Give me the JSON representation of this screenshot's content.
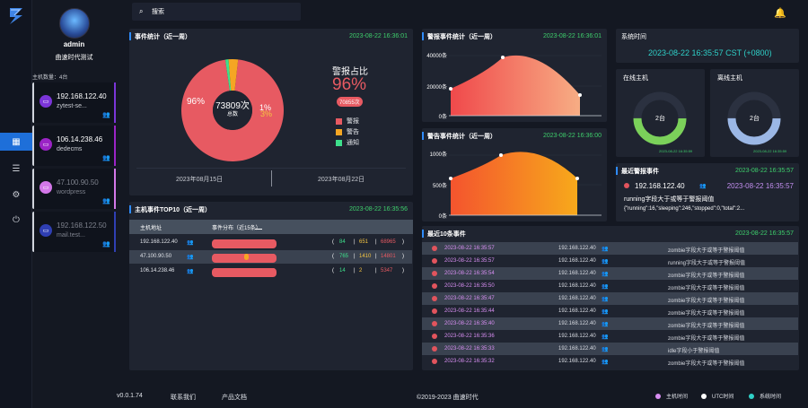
{
  "user": {
    "name": "admin",
    "org": "曲速时代测试"
  },
  "sidebar": {
    "host_count": "主机数量：4台",
    "hosts": [
      {
        "ip": "192.168.122.40",
        "name": "zytest-se...",
        "color": "#7b35d8"
      },
      {
        "ip": "106.14.238.46",
        "name": "dedecms",
        "color": "#9b24c6"
      },
      {
        "ip": "47.100.90.50",
        "name": "wordpress",
        "color": "#d478e9"
      },
      {
        "ip": "192.168.122.50",
        "name": "mail.test...",
        "color": "#2f3fb3"
      }
    ]
  },
  "search": {
    "placeholder": "搜索"
  },
  "event_stats": {
    "title": "事件统计（近一周）",
    "time": "2023-08-22 16:36:01",
    "center_value": "73809次",
    "center_label": "总数",
    "pct_alarm": "96%",
    "pct_other": "1%",
    "pct_notice": "3%",
    "alarm_ratio_label": "警报占比",
    "alarm_ratio": "96%",
    "alarm_count": "70855次",
    "legend": [
      "警报",
      "警告",
      "通知"
    ],
    "date_start": "2023年08月15日",
    "date_end": "2023年08月22日"
  },
  "alarm_stats": {
    "title": "警报事件统计（近一周）",
    "time": "2023-08-22 16:36:01",
    "yticks": [
      "40000条",
      "20000条",
      "0条"
    ]
  },
  "warn_stats": {
    "title": "警告事件统计（近一周）",
    "time": "2023-08-22 16:36:00",
    "yticks": [
      "1000条",
      "500条",
      "0条"
    ]
  },
  "sys_time": {
    "title": "系统时间",
    "value": "2023-08-22 16:35:57  CST (+0800)"
  },
  "online": {
    "title": "在线主机",
    "value": "2台",
    "time": "2023-08-22 16:35:59"
  },
  "offline": {
    "title": "离线主机",
    "value": "2台",
    "time": "2023-08-22 16:35:59"
  },
  "recent_alarm": {
    "title": "最近警报事件",
    "time": "2023-08-22 16:35:57",
    "ip": "192.168.122.40",
    "ts": "2023-08-22 16:35:57",
    "msg": "running字段大于或等于警报阈值",
    "detail": "{\"running\":16,\"sleeping\":246,\"stopped\":0,\"total\":2..."
  },
  "top10": {
    "title": "主机事件TOP10（近一周）",
    "time": "2023-08-22 16:35:56",
    "col1": "主机地址",
    "col2": "事件分布（近15条）",
    "rows": [
      {
        "ip": "192.168.122.40",
        "a": "84",
        "b": "651",
        "c": "68965"
      },
      {
        "ip": "47.100.90.50",
        "a": "765",
        "b": "1410",
        "c": "14801"
      },
      {
        "ip": "106.14.238.46",
        "a": "14",
        "b": "2",
        "c": "5347"
      }
    ]
  },
  "recent10": {
    "title": "最近10条事件",
    "time": "2023-08-22 16:35:57",
    "rows": [
      {
        "ts": "2023-08-22 16:35:57",
        "ip": "192.168.122.40",
        "msg": "zombie字段大于或等于警报阈值"
      },
      {
        "ts": "2023-08-22 16:35:57",
        "ip": "192.168.122.40",
        "msg": "running字段大于或等于警报阈值"
      },
      {
        "ts": "2023-08-22 16:35:54",
        "ip": "192.168.122.40",
        "msg": "zombie字段大于或等于警报阈值"
      },
      {
        "ts": "2023-08-22 16:35:50",
        "ip": "192.168.122.40",
        "msg": "zombie字段大于或等于警报阈值"
      },
      {
        "ts": "2023-08-22 16:35:47",
        "ip": "192.168.122.40",
        "msg": "zombie字段大于或等于警报阈值"
      },
      {
        "ts": "2023-08-22 16:35:44",
        "ip": "192.168.122.40",
        "msg": "zombie字段大于或等于警报阈值"
      },
      {
        "ts": "2023-08-22 16:35:40",
        "ip": "192.168.122.40",
        "msg": "zombie字段大于或等于警报阈值"
      },
      {
        "ts": "2023-08-22 16:35:36",
        "ip": "192.168.122.40",
        "msg": "zombie字段大于或等于警报阈值"
      },
      {
        "ts": "2023-08-22 16:35:33",
        "ip": "192.168.122.40",
        "msg": "idle字段小于警报阈值"
      },
      {
        "ts": "2023-08-22 16:35:32",
        "ip": "192.168.122.40",
        "msg": "zombie字段大于或等于警报阈值"
      }
    ]
  },
  "footer": {
    "version": "v0.0.1.74",
    "contact": "联系我们",
    "docs": "产品文档",
    "copyright": "©2019-2023 曲速时代",
    "legend_host": "主机时间",
    "legend_utc": "UTC时间",
    "legend_sys": "系统时间"
  },
  "colors": {
    "alarm": "#e75a62",
    "warn": "#f5a623",
    "notice": "#3de08b"
  }
}
